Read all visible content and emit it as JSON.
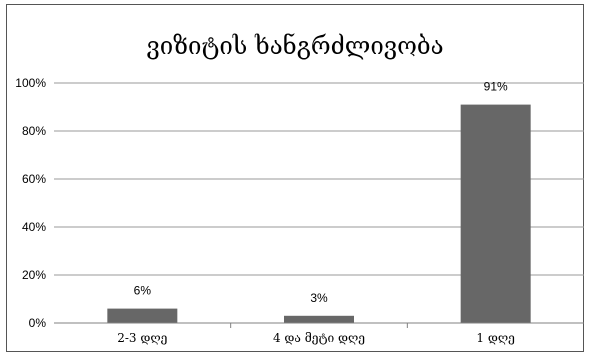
{
  "chart_data": {
    "type": "bar",
    "title": "ვიზიტის ხანგრძლივობა",
    "categories": [
      "2-3 დღე",
      "4 და მეტი დღე",
      "1 დღე"
    ],
    "values": [
      6,
      3,
      91
    ],
    "data_labels": [
      "6%",
      "3%",
      "91%"
    ],
    "yticks": [
      "0%",
      "20%",
      "40%",
      "60%",
      "80%",
      "100%"
    ],
    "ylim": [
      0,
      100
    ],
    "grid": true,
    "legend": "none",
    "bar_color": "#676767"
  }
}
